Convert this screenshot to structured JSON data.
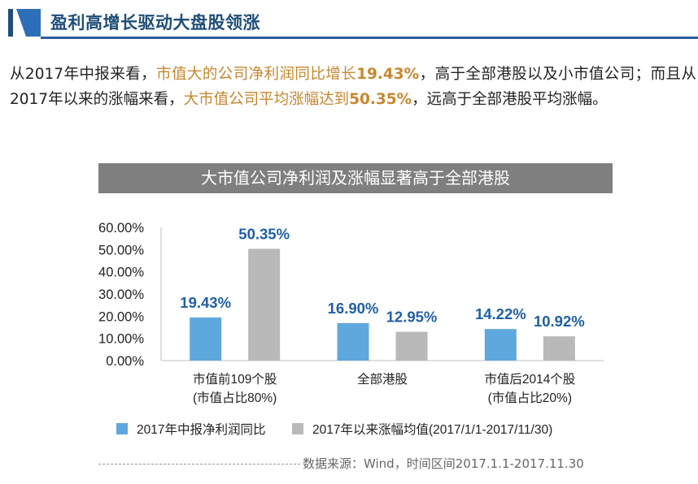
{
  "header": {
    "title": "盈利高增长驱动大盘股领涨"
  },
  "paragraph": {
    "p1": "从2017年中报来看，",
    "h1": "市值大的公司净利润同比增长",
    "v1": "19.43%",
    "p2": "，高于全部港股以及小市值公司；而且从2017年以来的涨幅来看，",
    "h2": "大市值公司平均涨幅达到",
    "v2": "50.35%",
    "p3": "，远高于全部港股平均涨幅。"
  },
  "colors": {
    "series1": "#5fa8de",
    "series2": "#b9b9b9",
    "label": "#1f5fa8",
    "accent": "#c8872f",
    "header": "#1f4e79"
  },
  "chart_data": {
    "type": "bar",
    "title": "大市值公司净利润及涨幅显著高于全部港股",
    "categories": [
      {
        "line1": "市值前109个股",
        "line2": "(市值占比80%)"
      },
      {
        "line1": "全部港股",
        "line2": ""
      },
      {
        "line1": "市值后2014个股",
        "line2": "(市值占比20%)"
      }
    ],
    "series": [
      {
        "name": "2017年中报净利润同比",
        "values": [
          19.43,
          16.9,
          14.22
        ],
        "labels": [
          "19.43%",
          "16.90%",
          "14.22%"
        ]
      },
      {
        "name": "2017年以来涨幅均值(2017/1/1-2017/11/30)",
        "values": [
          50.35,
          12.95,
          10.92
        ],
        "labels": [
          "50.35%",
          "12.95%",
          "10.92%"
        ]
      }
    ],
    "yticks": [
      "0.00%",
      "10.00%",
      "20.00%",
      "30.00%",
      "40.00%",
      "50.00%",
      "60.00%"
    ],
    "ylim": [
      0,
      60
    ],
    "xlabel": "",
    "ylabel": ""
  },
  "source": "数据来源：Wind，时间区间2017.1.1-2017.11.30"
}
